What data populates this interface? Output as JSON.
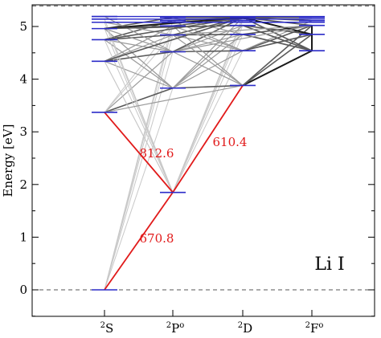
{
  "figure": {
    "ylabel": "Energy [eV]",
    "species": "Li I"
  },
  "chart_data": {
    "type": "grotrian-diagram",
    "ylabel": "Energy [eV]",
    "ylim": [
      -0.7,
      5.45
    ],
    "y_ticks": [
      0,
      1,
      2,
      3,
      4,
      5
    ],
    "terms": [
      {
        "key": "S",
        "mult": "2",
        "letter": "S",
        "parity": ""
      },
      {
        "key": "P",
        "mult": "2",
        "letter": "P",
        "parity": "o"
      },
      {
        "key": "D",
        "mult": "2",
        "letter": "D",
        "parity": ""
      },
      {
        "key": "F",
        "mult": "2",
        "letter": "F",
        "parity": "o"
      }
    ],
    "dashed_lines_eV": [
      0,
      5.39
    ],
    "levels": [
      {
        "term": "S",
        "energy": 0.0
      },
      {
        "term": "S",
        "energy": 3.37
      },
      {
        "term": "S",
        "energy": 4.34
      },
      {
        "term": "S",
        "energy": 4.75
      },
      {
        "term": "S",
        "energy": 4.96
      },
      {
        "term": "S",
        "energy": 5.08
      },
      {
        "term": "S",
        "energy": 5.14
      },
      {
        "term": "S",
        "energy": 5.19
      },
      {
        "term": "P",
        "energy": 1.85
      },
      {
        "term": "P",
        "energy": 3.83
      },
      {
        "term": "P",
        "energy": 4.52
      },
      {
        "term": "P",
        "energy": 4.84
      },
      {
        "term": "P",
        "energy": 5.01
      },
      {
        "term": "P",
        "energy": 5.11
      },
      {
        "term": "P",
        "energy": 5.17
      },
      {
        "term": "D",
        "energy": 3.88
      },
      {
        "term": "D",
        "energy": 4.54
      },
      {
        "term": "D",
        "energy": 4.85
      },
      {
        "term": "D",
        "energy": 5.02
      },
      {
        "term": "D",
        "energy": 5.11
      },
      {
        "term": "D",
        "energy": 5.17
      },
      {
        "term": "F",
        "energy": 4.54
      },
      {
        "term": "F",
        "energy": 4.85
      },
      {
        "term": "F",
        "energy": 5.02
      },
      {
        "term": "F",
        "energy": 5.11
      },
      {
        "term": "F",
        "energy": 5.17
      }
    ],
    "highlighted_transitions": [
      {
        "from": "S",
        "e1": 0.0,
        "to": "P",
        "e2": 1.85,
        "wavelength": "670.8"
      },
      {
        "from": "P",
        "e1": 1.85,
        "to": "S",
        "e2": 3.37,
        "wavelength": "812.6"
      },
      {
        "from": "P",
        "e1": 1.85,
        "to": "D",
        "e2": 3.88,
        "wavelength": "610.4"
      }
    ],
    "background_transitions": [
      {
        "from": "S",
        "e1": 0.0,
        "to": "P",
        "e2": 3.83,
        "shade": "light"
      },
      {
        "from": "S",
        "e1": 0.0,
        "to": "P",
        "e2": 4.52,
        "shade": "light"
      },
      {
        "from": "S",
        "e1": 0.0,
        "to": "P",
        "e2": 4.84,
        "shade": "light"
      },
      {
        "from": "S",
        "e1": 0.0,
        "to": "P",
        "e2": 5.01,
        "shade": "light"
      },
      {
        "from": "S",
        "e1": 0.0,
        "to": "P",
        "e2": 5.11,
        "shade": "light"
      },
      {
        "from": "S",
        "e1": 3.37,
        "to": "P",
        "e2": 3.83,
        "shade": "dark"
      },
      {
        "from": "S",
        "e1": 3.37,
        "to": "P",
        "e2": 4.52,
        "shade": "medium"
      },
      {
        "from": "S",
        "e1": 3.37,
        "to": "P",
        "e2": 4.84,
        "shade": "light"
      },
      {
        "from": "S",
        "e1": 3.37,
        "to": "P",
        "e2": 5.01,
        "shade": "light"
      },
      {
        "from": "S",
        "e1": 4.34,
        "to": "P",
        "e2": 1.85,
        "shade": "light"
      },
      {
        "from": "S",
        "e1": 4.34,
        "to": "P",
        "e2": 3.83,
        "shade": "medium"
      },
      {
        "from": "S",
        "e1": 4.34,
        "to": "P",
        "e2": 4.52,
        "shade": "dark"
      },
      {
        "from": "S",
        "e1": 4.34,
        "to": "P",
        "e2": 4.84,
        "shade": "medium"
      },
      {
        "from": "S",
        "e1": 4.34,
        "to": "P",
        "e2": 5.01,
        "shade": "medium"
      },
      {
        "from": "S",
        "e1": 4.75,
        "to": "P",
        "e2": 1.85,
        "shade": "light"
      },
      {
        "from": "S",
        "e1": 4.75,
        "to": "P",
        "e2": 3.83,
        "shade": "medium"
      },
      {
        "from": "S",
        "e1": 4.75,
        "to": "P",
        "e2": 4.52,
        "shade": "medium"
      },
      {
        "from": "S",
        "e1": 4.75,
        "to": "P",
        "e2": 4.84,
        "shade": "dark"
      },
      {
        "from": "S",
        "e1": 4.75,
        "to": "P",
        "e2": 5.11,
        "shade": "dark"
      },
      {
        "from": "S",
        "e1": 4.96,
        "to": "P",
        "e2": 1.85,
        "shade": "light"
      },
      {
        "from": "S",
        "e1": 4.96,
        "to": "P",
        "e2": 3.83,
        "shade": "medium"
      },
      {
        "from": "S",
        "e1": 4.96,
        "to": "P",
        "e2": 4.52,
        "shade": "medium"
      },
      {
        "from": "S",
        "e1": 4.96,
        "to": "P",
        "e2": 5.01,
        "shade": "dark"
      },
      {
        "from": "S",
        "e1": 4.96,
        "to": "P",
        "e2": 5.17,
        "shade": "dark"
      },
      {
        "from": "S",
        "e1": 5.08,
        "to": "P",
        "e2": 1.85,
        "shade": "light"
      },
      {
        "from": "S",
        "e1": 5.08,
        "to": "P",
        "e2": 4.84,
        "shade": "medium"
      },
      {
        "from": "S",
        "e1": 5.14,
        "to": "P",
        "e2": 1.85,
        "shade": "light"
      },
      {
        "from": "S",
        "e1": 5.19,
        "to": "P",
        "e2": 4.52,
        "shade": "medium"
      },
      {
        "from": "P",
        "e1": 1.85,
        "to": "S",
        "e2": 4.34,
        "shade": "light"
      },
      {
        "from": "P",
        "e1": 1.85,
        "to": "D",
        "e2": 4.54,
        "shade": "light"
      },
      {
        "from": "P",
        "e1": 1.85,
        "to": "D",
        "e2": 4.85,
        "shade": "light"
      },
      {
        "from": "P",
        "e1": 1.85,
        "to": "D",
        "e2": 5.02,
        "shade": "light"
      },
      {
        "from": "P",
        "e1": 1.85,
        "to": "D",
        "e2": 5.11,
        "shade": "light"
      },
      {
        "from": "P",
        "e1": 1.85,
        "to": "D",
        "e2": 5.17,
        "shade": "light"
      },
      {
        "from": "P",
        "e1": 3.83,
        "to": "D",
        "e2": 3.88,
        "shade": "dark"
      },
      {
        "from": "P",
        "e1": 3.83,
        "to": "D",
        "e2": 4.54,
        "shade": "medium"
      },
      {
        "from": "P",
        "e1": 3.83,
        "to": "D",
        "e2": 4.85,
        "shade": "medium"
      },
      {
        "from": "P",
        "e1": 3.83,
        "to": "D",
        "e2": 5.02,
        "shade": "medium"
      },
      {
        "from": "P",
        "e1": 3.83,
        "to": "D",
        "e2": 5.17,
        "shade": "medium"
      },
      {
        "from": "P",
        "e1": 4.52,
        "to": "D",
        "e2": 3.88,
        "shade": "medium"
      },
      {
        "from": "P",
        "e1": 4.52,
        "to": "D",
        "e2": 4.54,
        "shade": "dark"
      },
      {
        "from": "P",
        "e1": 4.52,
        "to": "D",
        "e2": 4.85,
        "shade": "medium"
      },
      {
        "from": "P",
        "e1": 4.52,
        "to": "D",
        "e2": 5.02,
        "shade": "medium"
      },
      {
        "from": "P",
        "e1": 4.52,
        "to": "D",
        "e2": 5.17,
        "shade": "dark"
      },
      {
        "from": "P",
        "e1": 4.84,
        "to": "D",
        "e2": 3.88,
        "shade": "medium"
      },
      {
        "from": "P",
        "e1": 4.84,
        "to": "D",
        "e2": 4.54,
        "shade": "medium"
      },
      {
        "from": "P",
        "e1": 4.84,
        "to": "D",
        "e2": 4.85,
        "shade": "dark"
      },
      {
        "from": "P",
        "e1": 4.84,
        "to": "D",
        "e2": 5.17,
        "shade": "dark"
      },
      {
        "from": "P",
        "e1": 5.01,
        "to": "D",
        "e2": 3.88,
        "shade": "medium"
      },
      {
        "from": "P",
        "e1": 5.01,
        "to": "D",
        "e2": 4.54,
        "shade": "medium"
      },
      {
        "from": "P",
        "e1": 5.01,
        "to": "D",
        "e2": 5.17,
        "shade": "dark"
      },
      {
        "from": "P",
        "e1": 5.11,
        "to": "D",
        "e2": 4.54,
        "shade": "medium"
      },
      {
        "from": "P",
        "e1": 5.11,
        "to": "D",
        "e2": 5.17,
        "shade": "dark"
      },
      {
        "from": "P",
        "e1": 5.17,
        "to": "D",
        "e2": 4.85,
        "shade": "medium"
      },
      {
        "from": "D",
        "e1": 3.88,
        "to": "F",
        "e2": 4.54,
        "shade": "black"
      },
      {
        "from": "D",
        "e1": 3.88,
        "to": "F",
        "e2": 4.85,
        "shade": "dark"
      },
      {
        "from": "D",
        "e1": 3.88,
        "to": "F",
        "e2": 5.02,
        "shade": "dark"
      },
      {
        "from": "D",
        "e1": 4.54,
        "to": "F",
        "e2": 4.85,
        "shade": "dark"
      },
      {
        "from": "D",
        "e1": 4.54,
        "to": "F",
        "e2": 5.02,
        "shade": "dark"
      },
      {
        "from": "D",
        "e1": 4.54,
        "to": "F",
        "e2": 5.11,
        "shade": "medium"
      },
      {
        "from": "D",
        "e1": 4.85,
        "to": "F",
        "e2": 4.54,
        "shade": "dark"
      },
      {
        "from": "D",
        "e1": 4.85,
        "to": "F",
        "e2": 5.02,
        "shade": "dark"
      },
      {
        "from": "D",
        "e1": 5.02,
        "to": "F",
        "e2": 4.54,
        "shade": "dark"
      },
      {
        "from": "D",
        "e1": 5.02,
        "to": "F",
        "e2": 4.85,
        "shade": "dark"
      },
      {
        "from": "D",
        "e1": 5.17,
        "to": "F",
        "e2": 4.54,
        "shade": "dark"
      },
      {
        "from": "D",
        "e1": 5.17,
        "to": "F",
        "e2": 5.02,
        "shade": "dark"
      },
      {
        "from": "D",
        "e1": 5.17,
        "to": "F",
        "e2": 5.11,
        "shade": "dark"
      },
      {
        "from": "D",
        "e1": 5.17,
        "to": "F",
        "e2": 4.85,
        "shade": "black"
      },
      {
        "from": "F",
        "e1": 5.02,
        "to": "F",
        "e2": 4.54,
        "shade": "black"
      },
      {
        "from": "S",
        "e1": 4.34,
        "to": "D",
        "e2": 5.17,
        "shade": "dark"
      },
      {
        "from": "S",
        "e1": 4.75,
        "to": "D",
        "e2": 5.17,
        "shade": "dark"
      },
      {
        "from": "S",
        "e1": 4.96,
        "to": "D",
        "e2": 5.17,
        "shade": "black"
      },
      {
        "from": "S",
        "e1": 4.96,
        "to": "D",
        "e2": 5.02,
        "shade": "dark"
      },
      {
        "from": "S",
        "e1": 3.37,
        "to": "D",
        "e2": 3.88,
        "shade": "medium"
      },
      {
        "from": "P",
        "e1": 4.52,
        "to": "F",
        "e2": 5.02,
        "shade": "medium"
      },
      {
        "from": "P",
        "e1": 4.84,
        "to": "F",
        "e2": 5.02,
        "shade": "medium"
      },
      {
        "from": "P",
        "e1": 5.17,
        "to": "F",
        "e2": 5.17,
        "shade": "dark"
      }
    ],
    "colors": {
      "level": "#2b2bc8",
      "highlight": "#e11a1a",
      "light": "#c8c8c8",
      "medium": "#9a9a9a",
      "dark": "#5a5a5a",
      "black": "#1a1a1a",
      "axis": "#000000",
      "dash": "#555555"
    }
  }
}
